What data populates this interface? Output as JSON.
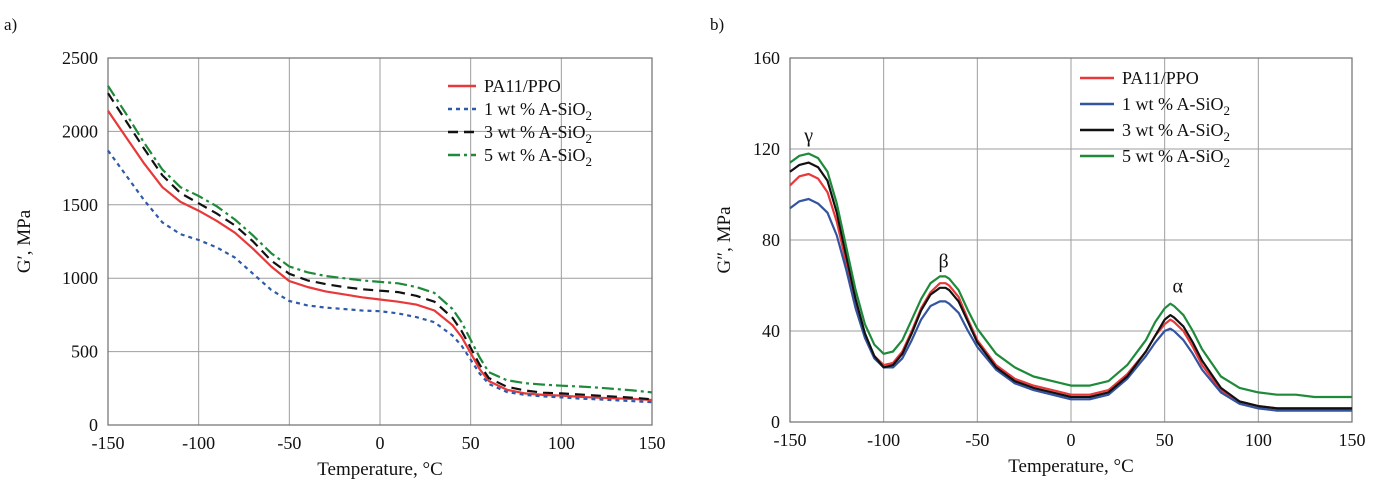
{
  "chart_data": [
    {
      "panel_label": "a)",
      "type": "line",
      "xlabel": "Temperature, °C",
      "ylabel": "G′, MPa",
      "xlim": [
        -150,
        150
      ],
      "ylim": [
        0,
        2500
      ],
      "xticks": [
        "-150",
        "-100",
        "-50",
        "0",
        "50",
        "100",
        "150"
      ],
      "yticks": [
        "0",
        "500",
        "1000",
        "1500",
        "2000",
        "2500"
      ],
      "grid": true,
      "legend_position": "top-right",
      "series": [
        {
          "name": "PA11/PPO",
          "legend_main": "PA11/PPO",
          "legend_sub": "",
          "color": "#e8383a",
          "dash": "solid",
          "x": [
            -150,
            -140,
            -130,
            -120,
            -110,
            -100,
            -90,
            -80,
            -70,
            -60,
            -50,
            -40,
            -30,
            -20,
            -10,
            0,
            10,
            20,
            30,
            40,
            45,
            50,
            55,
            60,
            70,
            80,
            90,
            100,
            110,
            120,
            130,
            140,
            150
          ],
          "y": [
            2140,
            1960,
            1780,
            1620,
            1520,
            1460,
            1390,
            1310,
            1200,
            1080,
            980,
            940,
            910,
            890,
            870,
            855,
            840,
            820,
            780,
            680,
            600,
            490,
            380,
            300,
            240,
            215,
            205,
            200,
            192,
            186,
            182,
            177,
            170
          ]
        },
        {
          "name": "1 wt % A-SiO2",
          "legend_main": "1 wt % A-SiO",
          "legend_sub": "2",
          "color": "#2e5aa8",
          "dash": "4 4",
          "x": [
            -150,
            -140,
            -130,
            -120,
            -110,
            -100,
            -90,
            -80,
            -70,
            -60,
            -50,
            -40,
            -30,
            -20,
            -10,
            0,
            10,
            20,
            30,
            40,
            45,
            50,
            55,
            60,
            70,
            80,
            90,
            100,
            110,
            120,
            130,
            140,
            150
          ],
          "y": [
            1870,
            1700,
            1530,
            1380,
            1300,
            1260,
            1210,
            1140,
            1030,
            920,
            845,
            815,
            800,
            790,
            780,
            775,
            760,
            735,
            700,
            610,
            540,
            445,
            350,
            280,
            225,
            205,
            195,
            188,
            180,
            175,
            168,
            162,
            155
          ]
        },
        {
          "name": "3 wt % A-SiO2",
          "legend_main": "3 wt % A-SiO",
          "legend_sub": "2",
          "color": "#111111",
          "dash": "10 6",
          "x": [
            -150,
            -140,
            -130,
            -120,
            -110,
            -100,
            -90,
            -80,
            -70,
            -60,
            -50,
            -40,
            -30,
            -20,
            -10,
            0,
            10,
            20,
            30,
            40,
            45,
            50,
            55,
            60,
            70,
            80,
            90,
            100,
            110,
            120,
            130,
            140,
            150
          ],
          "y": [
            2260,
            2070,
            1880,
            1700,
            1580,
            1510,
            1440,
            1360,
            1250,
            1120,
            1030,
            985,
            960,
            940,
            925,
            915,
            905,
            880,
            840,
            730,
            640,
            525,
            410,
            320,
            260,
            235,
            220,
            215,
            208,
            200,
            193,
            185,
            175
          ]
        },
        {
          "name": "5 wt % A-SiO2",
          "legend_main": "5 wt % A-SiO",
          "legend_sub": "2",
          "color": "#1e8a3a",
          "dash": "12 4 3 4",
          "x": [
            -150,
            -140,
            -130,
            -120,
            -110,
            -100,
            -90,
            -80,
            -70,
            -60,
            -50,
            -40,
            -30,
            -20,
            -10,
            0,
            10,
            20,
            30,
            40,
            45,
            50,
            55,
            60,
            70,
            80,
            90,
            100,
            110,
            120,
            130,
            140,
            150
          ],
          "y": [
            2310,
            2120,
            1920,
            1740,
            1620,
            1560,
            1490,
            1400,
            1290,
            1170,
            1080,
            1040,
            1015,
            1000,
            985,
            975,
            965,
            940,
            900,
            790,
            700,
            580,
            460,
            360,
            305,
            285,
            275,
            268,
            262,
            255,
            245,
            235,
            222
          ]
        }
      ]
    },
    {
      "panel_label": "b)",
      "type": "line",
      "xlabel": "Temperature, °C",
      "ylabel": "G″, MPa",
      "xlim": [
        -150,
        150
      ],
      "ylim": [
        0,
        160
      ],
      "xticks": [
        "-150",
        "-100",
        "-50",
        "0",
        "50",
        "100",
        "150"
      ],
      "yticks": [
        "0",
        "40",
        "80",
        "120",
        "160"
      ],
      "grid": true,
      "legend_position": "top-right",
      "annotations": [
        {
          "text": "γ",
          "x": -140,
          "y": 123
        },
        {
          "text": "β",
          "x": -68,
          "y": 68
        },
        {
          "text": "α",
          "x": 57,
          "y": 57
        }
      ],
      "series": [
        {
          "name": "PA11/PPO",
          "legend_main": "PA11/PPO",
          "legend_sub": "",
          "color": "#e8383a",
          "dash": "solid",
          "x": [
            -150,
            -145,
            -140,
            -135,
            -130,
            -125,
            -120,
            -115,
            -110,
            -105,
            -100,
            -95,
            -90,
            -85,
            -80,
            -75,
            -70,
            -67,
            -65,
            -60,
            -55,
            -50,
            -40,
            -30,
            -20,
            -10,
            0,
            10,
            20,
            30,
            40,
            45,
            50,
            53,
            55,
            60,
            65,
            70,
            80,
            90,
            100,
            110,
            120,
            130,
            140,
            150
          ],
          "y": [
            104,
            108,
            109,
            107,
            101,
            88,
            70,
            52,
            38,
            29,
            25,
            26,
            31,
            40,
            50,
            57,
            61,
            61,
            60,
            55,
            45,
            36,
            25,
            19,
            16,
            14,
            12,
            12,
            14,
            21,
            31,
            38,
            43,
            45,
            44,
            40,
            33,
            25,
            14,
            9,
            7,
            6,
            6,
            6,
            6,
            6
          ]
        },
        {
          "name": "1 wt % A-SiO2",
          "legend_main": "1 wt % A-SiO",
          "legend_sub": "2",
          "color": "#3454a0",
          "dash": "solid",
          "x": [
            -150,
            -145,
            -140,
            -135,
            -130,
            -125,
            -120,
            -115,
            -110,
            -105,
            -100,
            -95,
            -90,
            -85,
            -80,
            -75,
            -70,
            -67,
            -65,
            -60,
            -55,
            -50,
            -40,
            -30,
            -20,
            -10,
            0,
            10,
            20,
            30,
            40,
            45,
            50,
            53,
            55,
            60,
            65,
            70,
            80,
            90,
            100,
            110,
            120,
            130,
            140,
            150
          ],
          "y": [
            94,
            97,
            98,
            96,
            92,
            82,
            67,
            50,
            37,
            28,
            24,
            24,
            28,
            36,
            45,
            51,
            53,
            53,
            52,
            48,
            40,
            33,
            23,
            17,
            14,
            12,
            10,
            10,
            12,
            19,
            29,
            35,
            40,
            41,
            40,
            36,
            30,
            23,
            13,
            8,
            6,
            5,
            5,
            5,
            5,
            5
          ]
        },
        {
          "name": "3 wt % A-SiO2",
          "legend_main": "3 wt % A-SiO",
          "legend_sub": "2",
          "color": "#111111",
          "dash": "solid",
          "x": [
            -150,
            -145,
            -140,
            -135,
            -130,
            -125,
            -120,
            -115,
            -110,
            -105,
            -100,
            -95,
            -90,
            -85,
            -80,
            -75,
            -70,
            -67,
            -65,
            -60,
            -55,
            -50,
            -40,
            -30,
            -20,
            -10,
            0,
            10,
            20,
            30,
            40,
            45,
            50,
            53,
            55,
            60,
            65,
            70,
            80,
            90,
            100,
            110,
            120,
            130,
            140,
            150
          ],
          "y": [
            110,
            113,
            114,
            112,
            106,
            92,
            73,
            54,
            39,
            29,
            24,
            25,
            30,
            39,
            49,
            56,
            59,
            59,
            58,
            53,
            44,
            35,
            24,
            18,
            15,
            13,
            11,
            11,
            13,
            20,
            31,
            38,
            45,
            47,
            46,
            42,
            35,
            27,
            15,
            9,
            7,
            6,
            6,
            6,
            6,
            6
          ]
        },
        {
          "name": "5 wt % A-SiO2",
          "legend_main": "5 wt % A-SiO",
          "legend_sub": "2",
          "color": "#1e8a3a",
          "dash": "solid",
          "x": [
            -150,
            -145,
            -140,
            -135,
            -130,
            -125,
            -120,
            -115,
            -110,
            -105,
            -100,
            -95,
            -90,
            -85,
            -80,
            -75,
            -70,
            -67,
            -65,
            -60,
            -55,
            -50,
            -40,
            -30,
            -20,
            -10,
            0,
            10,
            20,
            30,
            40,
            45,
            50,
            53,
            55,
            60,
            65,
            70,
            80,
            90,
            100,
            110,
            120,
            130,
            140,
            150
          ],
          "y": [
            114,
            117,
            118,
            116,
            110,
            96,
            77,
            58,
            43,
            34,
            30,
            31,
            36,
            45,
            54,
            61,
            64,
            64,
            63,
            58,
            49,
            41,
            30,
            24,
            20,
            18,
            16,
            16,
            18,
            25,
            36,
            44,
            50,
            52,
            51,
            47,
            40,
            32,
            20,
            15,
            13,
            12,
            12,
            11,
            11,
            11
          ]
        }
      ]
    }
  ]
}
